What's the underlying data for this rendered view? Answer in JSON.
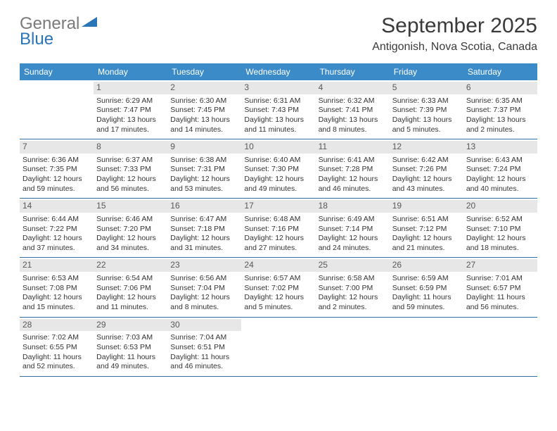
{
  "logo": {
    "part1": "General",
    "part2": "Blue"
  },
  "title": "September 2025",
  "location": "Antigonish, Nova Scotia, Canada",
  "header_color": "#3b8bc9",
  "divider_color": "#2f6ea3",
  "daynum_bg": "#e7e7e7",
  "weekdays": [
    "Sunday",
    "Monday",
    "Tuesday",
    "Wednesday",
    "Thursday",
    "Friday",
    "Saturday"
  ],
  "weeks": [
    [
      {
        "empty": true
      },
      {
        "n": "1",
        "sr": "6:29 AM",
        "ss": "7:47 PM",
        "dl": "13 hours and 17 minutes."
      },
      {
        "n": "2",
        "sr": "6:30 AM",
        "ss": "7:45 PM",
        "dl": "13 hours and 14 minutes."
      },
      {
        "n": "3",
        "sr": "6:31 AM",
        "ss": "7:43 PM",
        "dl": "13 hours and 11 minutes."
      },
      {
        "n": "4",
        "sr": "6:32 AM",
        "ss": "7:41 PM",
        "dl": "13 hours and 8 minutes."
      },
      {
        "n": "5",
        "sr": "6:33 AM",
        "ss": "7:39 PM",
        "dl": "13 hours and 5 minutes."
      },
      {
        "n": "6",
        "sr": "6:35 AM",
        "ss": "7:37 PM",
        "dl": "13 hours and 2 minutes."
      }
    ],
    [
      {
        "n": "7",
        "sr": "6:36 AM",
        "ss": "7:35 PM",
        "dl": "12 hours and 59 minutes."
      },
      {
        "n": "8",
        "sr": "6:37 AM",
        "ss": "7:33 PM",
        "dl": "12 hours and 56 minutes."
      },
      {
        "n": "9",
        "sr": "6:38 AM",
        "ss": "7:31 PM",
        "dl": "12 hours and 53 minutes."
      },
      {
        "n": "10",
        "sr": "6:40 AM",
        "ss": "7:30 PM",
        "dl": "12 hours and 49 minutes."
      },
      {
        "n": "11",
        "sr": "6:41 AM",
        "ss": "7:28 PM",
        "dl": "12 hours and 46 minutes."
      },
      {
        "n": "12",
        "sr": "6:42 AM",
        "ss": "7:26 PM",
        "dl": "12 hours and 43 minutes."
      },
      {
        "n": "13",
        "sr": "6:43 AM",
        "ss": "7:24 PM",
        "dl": "12 hours and 40 minutes."
      }
    ],
    [
      {
        "n": "14",
        "sr": "6:44 AM",
        "ss": "7:22 PM",
        "dl": "12 hours and 37 minutes."
      },
      {
        "n": "15",
        "sr": "6:46 AM",
        "ss": "7:20 PM",
        "dl": "12 hours and 34 minutes."
      },
      {
        "n": "16",
        "sr": "6:47 AM",
        "ss": "7:18 PM",
        "dl": "12 hours and 31 minutes."
      },
      {
        "n": "17",
        "sr": "6:48 AM",
        "ss": "7:16 PM",
        "dl": "12 hours and 27 minutes."
      },
      {
        "n": "18",
        "sr": "6:49 AM",
        "ss": "7:14 PM",
        "dl": "12 hours and 24 minutes."
      },
      {
        "n": "19",
        "sr": "6:51 AM",
        "ss": "7:12 PM",
        "dl": "12 hours and 21 minutes."
      },
      {
        "n": "20",
        "sr": "6:52 AM",
        "ss": "7:10 PM",
        "dl": "12 hours and 18 minutes."
      }
    ],
    [
      {
        "n": "21",
        "sr": "6:53 AM",
        "ss": "7:08 PM",
        "dl": "12 hours and 15 minutes."
      },
      {
        "n": "22",
        "sr": "6:54 AM",
        "ss": "7:06 PM",
        "dl": "12 hours and 11 minutes."
      },
      {
        "n": "23",
        "sr": "6:56 AM",
        "ss": "7:04 PM",
        "dl": "12 hours and 8 minutes."
      },
      {
        "n": "24",
        "sr": "6:57 AM",
        "ss": "7:02 PM",
        "dl": "12 hours and 5 minutes."
      },
      {
        "n": "25",
        "sr": "6:58 AM",
        "ss": "7:00 PM",
        "dl": "12 hours and 2 minutes."
      },
      {
        "n": "26",
        "sr": "6:59 AM",
        "ss": "6:59 PM",
        "dl": "11 hours and 59 minutes."
      },
      {
        "n": "27",
        "sr": "7:01 AM",
        "ss": "6:57 PM",
        "dl": "11 hours and 56 minutes."
      }
    ],
    [
      {
        "n": "28",
        "sr": "7:02 AM",
        "ss": "6:55 PM",
        "dl": "11 hours and 52 minutes."
      },
      {
        "n": "29",
        "sr": "7:03 AM",
        "ss": "6:53 PM",
        "dl": "11 hours and 49 minutes."
      },
      {
        "n": "30",
        "sr": "7:04 AM",
        "ss": "6:51 PM",
        "dl": "11 hours and 46 minutes."
      },
      {
        "empty": true
      },
      {
        "empty": true
      },
      {
        "empty": true
      },
      {
        "empty": true
      }
    ]
  ],
  "labels": {
    "sunrise": "Sunrise: ",
    "sunset": "Sunset: ",
    "daylight": "Daylight: "
  }
}
